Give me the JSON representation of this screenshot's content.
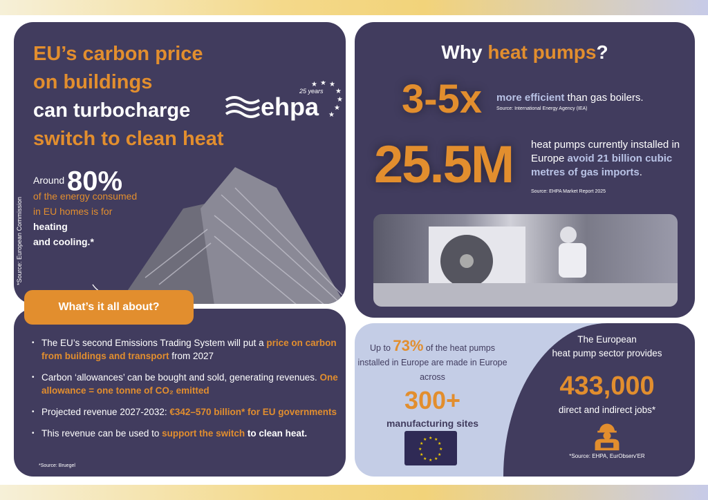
{
  "colors": {
    "panel": "#413c5e",
    "accent": "#e28e2e",
    "lavender": "#c4cde6"
  },
  "left_top": {
    "title_line1": "EU’s carbon price",
    "title_line2": "on buildings",
    "title_line3": "can turbocharge",
    "title_line4": "switch to clean heat",
    "logo": {
      "text": "ehpa",
      "tagline": "25 years"
    },
    "stat": {
      "prefix": "Around",
      "value": "80%",
      "line1": "of the energy consumed",
      "line2": "in EU homes is for",
      "line3": "heating",
      "line4": "and cooling.*"
    },
    "source": "*Source: European Commission"
  },
  "about": {
    "button": "What’s it all about?",
    "bullets": [
      {
        "a": "The EU’s second Emissions Trading System will put a ",
        "b": "price on carbon from buildings and transport",
        "c": " from 2027"
      },
      {
        "a": "Carbon ‘allowances’ can be bought and sold, generating revenues. ",
        "b": "One allowance = one tonne of CO₂ emitted",
        "c": ""
      },
      {
        "a": "Projected revenue 2027-2032: ",
        "b": "€342–570 billion* for EU governments",
        "c": ""
      },
      {
        "a": "This revenue can be used to ",
        "b": "support the switch",
        "c": " to clean heat."
      }
    ],
    "source": "*Source: Bruegel"
  },
  "why": {
    "title_a": "Why ",
    "title_b": "heat pumps",
    "title_c": "?",
    "stat1": {
      "value": "3-5x",
      "hl": "more efficient",
      "text": " than gas boilers.",
      "source": "Source: International Energy Agency (IEA)"
    },
    "stat2": {
      "value": "25.5M",
      "text": "heat pumps currently installed in Europe ",
      "hl": "avoid 21 billion cubic metres of gas imports",
      "end": ".",
      "source": "Source: EHPA Market Report 2025"
    }
  },
  "bottom_right": {
    "left": {
      "prefix": "Up to ",
      "pct": "73%",
      "text": " of the heat pumps installed in Europe are made in Europe across",
      "value": "300+",
      "label": "manufacturing sites"
    },
    "right": {
      "line1": "The European",
      "line2": "heat pump sector provides",
      "value": "433,000",
      "label": "direct and indirect jobs*",
      "source": "*Source: EHPA, EurObserv'ER"
    }
  }
}
